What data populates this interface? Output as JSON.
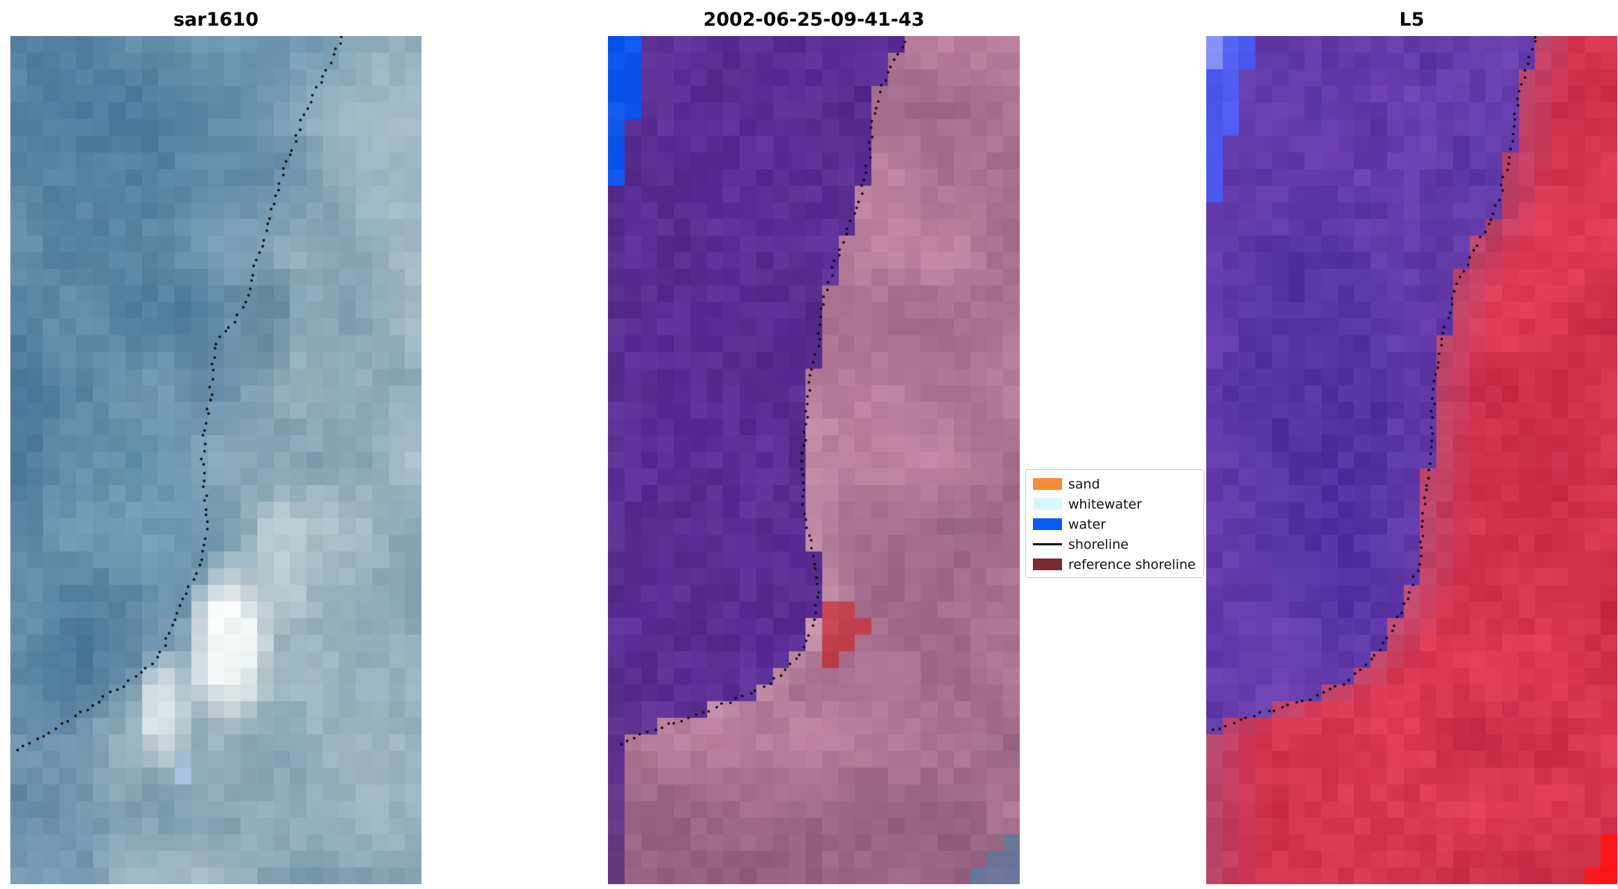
{
  "figure": {
    "background": "#ffffff",
    "panels": [
      {
        "id": "sar1610",
        "title": "sar1610"
      },
      {
        "id": "classified",
        "title": "2002-06-25-09-41-43"
      },
      {
        "id": "L5",
        "title": "L5"
      }
    ]
  },
  "legend": {
    "items": [
      {
        "label": "sand",
        "color": "#f78c34",
        "type": "patch"
      },
      {
        "label": "whitewater",
        "color": "#d6f7fb",
        "type": "patch"
      },
      {
        "label": "water",
        "color": "#0b5cf7",
        "type": "patch"
      },
      {
        "label": "shoreline",
        "color": "#000000",
        "type": "line"
      },
      {
        "label": "reference shoreline",
        "color": "#7c2b30",
        "type": "patch"
      }
    ]
  },
  "chart_data": [
    {
      "type": "heatmap",
      "title": "sar1610",
      "description": "SAR backscatter satellite image, mottled blue-grey pixels with bright white coastal features and a dotted black detected shoreline",
      "grid": [
        25,
        51
      ],
      "boundary": "soft",
      "water": {
        "colors": [
          "#3e6d94",
          "#79a2b8"
        ]
      },
      "land": {
        "colors": [
          "#6f93a6",
          "#b9cad2"
        ]
      },
      "features": [
        {
          "kind": "blob",
          "x": 0.53,
          "y": 0.715,
          "r": 0.115,
          "color": "#f4f7f6",
          "strength": 1
        },
        {
          "kind": "blob",
          "x": 0.37,
          "y": 0.795,
          "r": 0.075,
          "color": "#e6eeef",
          "strength": 0.85
        },
        {
          "kind": "blob",
          "x": 0.66,
          "y": 0.62,
          "r": 0.09,
          "color": "#cfdde3",
          "strength": 0.5
        },
        {
          "kind": "blob",
          "x": 0.88,
          "y": 0.14,
          "r": 0.13,
          "color": "#a9c2cf",
          "strength": 0.45
        },
        {
          "kind": "blob",
          "x": 0.63,
          "y": 0.33,
          "r": 0.09,
          "color": "#577b91",
          "strength": 0.5
        },
        {
          "kind": "blob",
          "x": 0.12,
          "y": 0.08,
          "r": 0.22,
          "color": "#3e6c95",
          "strength": 0.4
        },
        {
          "kind": "blob",
          "x": 0.35,
          "y": 0.55,
          "r": 0.15,
          "color": "#6fa3b8",
          "strength": 0.3
        },
        {
          "kind": "blob",
          "x": 0.41,
          "y": 0.865,
          "r": 0.022,
          "color": "#b9c9ef",
          "strength": 0.95
        },
        {
          "kind": "blob",
          "x": 0.08,
          "y": 0.95,
          "r": 0.2,
          "color": "#45759f",
          "strength": 0.35
        }
      ],
      "shoreline": [
        [
          0.808,
          0.0
        ],
        [
          0.778,
          0.031
        ],
        [
          0.745,
          0.061
        ],
        [
          0.715,
          0.092
        ],
        [
          0.689,
          0.129
        ],
        [
          0.662,
          0.165
        ],
        [
          0.636,
          0.202
        ],
        [
          0.619,
          0.239
        ],
        [
          0.593,
          0.275
        ],
        [
          0.573,
          0.312
        ],
        [
          0.543,
          0.337
        ],
        [
          0.505,
          0.355
        ],
        [
          0.492,
          0.386
        ],
        [
          0.487,
          0.422
        ],
        [
          0.475,
          0.459
        ],
        [
          0.467,
          0.496
        ],
        [
          0.472,
          0.532
        ],
        [
          0.48,
          0.569
        ],
        [
          0.475,
          0.6
        ],
        [
          0.455,
          0.63
        ],
        [
          0.429,
          0.655
        ],
        [
          0.404,
          0.679
        ],
        [
          0.386,
          0.704
        ],
        [
          0.366,
          0.728
        ],
        [
          0.328,
          0.747
        ],
        [
          0.278,
          0.765
        ],
        [
          0.227,
          0.78
        ],
        [
          0.177,
          0.796
        ],
        [
          0.114,
          0.814
        ],
        [
          0.051,
          0.832
        ],
        [
          0.005,
          0.845
        ]
      ]
    },
    {
      "type": "heatmap",
      "title": "2002-06-25-09-41-43",
      "description": "Classified satellite image: purple water class left, mauve-pink land right, blue water patch top-left, brick-red reference patch near shoreline, slate patch bottom-right, dotted detected shoreline",
      "grid": [
        25,
        51
      ],
      "boundary": "hard",
      "water": {
        "colors": [
          "#562b8b",
          "#5f319a"
        ]
      },
      "land": {
        "colors": [
          "#95607f",
          "#c88ca8"
        ]
      },
      "features": [
        {
          "kind": "corner",
          "corner": "top-left",
          "x_extent": 0.1,
          "y_extent": 0.23,
          "color": "#0a58f2"
        },
        {
          "kind": "edge-blend",
          "width": 0.09,
          "color": "#d5a2ba",
          "strength": 0.55,
          "v0": 0.45,
          "v1": 0.8
        },
        {
          "kind": "vshade",
          "v0": 0.78,
          "color": "#7e4d6e",
          "strength": 0.45
        },
        {
          "kind": "blob",
          "x": 0.565,
          "y": 0.695,
          "rx": 0.062,
          "ry": 0.036,
          "color": "#c4424e",
          "hard": true
        },
        {
          "kind": "blob",
          "x": 0.528,
          "y": 0.735,
          "rx": 0.02,
          "ry": 0.012,
          "color": "#c4424e",
          "hard": true
        },
        {
          "kind": "corner",
          "corner": "bottom-right",
          "x_extent": 0.15,
          "y_extent": 0.075,
          "color": "#68789b"
        }
      ],
      "shoreline": [
        [
          0.733,
          0.0
        ],
        [
          0.69,
          0.031
        ],
        [
          0.66,
          0.067
        ],
        [
          0.64,
          0.104
        ],
        [
          0.635,
          0.141
        ],
        [
          0.615,
          0.184
        ],
        [
          0.589,
          0.22
        ],
        [
          0.559,
          0.257
        ],
        [
          0.534,
          0.294
        ],
        [
          0.514,
          0.33
        ],
        [
          0.509,
          0.367
        ],
        [
          0.489,
          0.404
        ],
        [
          0.484,
          0.441
        ],
        [
          0.476,
          0.477
        ],
        [
          0.471,
          0.514
        ],
        [
          0.476,
          0.551
        ],
        [
          0.484,
          0.581
        ],
        [
          0.501,
          0.618
        ],
        [
          0.509,
          0.655
        ],
        [
          0.501,
          0.691
        ],
        [
          0.476,
          0.722
        ],
        [
          0.438,
          0.747
        ],
        [
          0.388,
          0.765
        ],
        [
          0.325,
          0.78
        ],
        [
          0.262,
          0.792
        ],
        [
          0.199,
          0.804
        ],
        [
          0.136,
          0.814
        ],
        [
          0.073,
          0.826
        ],
        [
          0.023,
          0.836
        ]
      ]
    },
    {
      "type": "heatmap",
      "title": "L5",
      "description": "Landsat 5 false-colour image: mottled purple water left, red land right, blue patch top-left, bright red patch bottom-right corner, dotted detected shoreline",
      "grid": [
        25,
        51
      ],
      "boundary": "hard",
      "water": {
        "colors": [
          "#5c36a4",
          "#6e41b2"
        ]
      },
      "land": {
        "colors": [
          "#c62a46",
          "#e8415c"
        ]
      },
      "features": [
        {
          "kind": "corner",
          "corner": "top-left",
          "x_extent": 0.115,
          "y_extent": 0.23,
          "color": "#4d5cf2"
        },
        {
          "kind": "corner",
          "corner": "top-left",
          "x_extent": 0.05,
          "y_extent": 0.055,
          "color": "#8a93f8"
        },
        {
          "kind": "blob",
          "x": 0.28,
          "y": 0.42,
          "r": 0.27,
          "color": "#3f2a96",
          "strength": 0.5,
          "side": "water"
        },
        {
          "kind": "blob",
          "x": 0.34,
          "y": 0.62,
          "r": 0.19,
          "color": "#452da0",
          "strength": 0.45,
          "side": "water"
        },
        {
          "kind": "edge-blend",
          "width": 0.11,
          "color": "#a85585",
          "strength": 0.6
        },
        {
          "kind": "vshade",
          "v0": 0.8,
          "color": "#a21f38",
          "strength": 0.15
        },
        {
          "kind": "corner",
          "corner": "bottom-right",
          "x_extent": 0.08,
          "y_extent": 0.08,
          "color": "#fd1111"
        }
      ],
      "shoreline": [
        [
          0.803,
          0.0
        ],
        [
          0.778,
          0.037
        ],
        [
          0.758,
          0.073
        ],
        [
          0.747,
          0.11
        ],
        [
          0.732,
          0.153
        ],
        [
          0.715,
          0.19
        ],
        [
          0.682,
          0.226
        ],
        [
          0.639,
          0.263
        ],
        [
          0.606,
          0.294
        ],
        [
          0.588,
          0.33
        ],
        [
          0.571,
          0.367
        ],
        [
          0.556,
          0.404
        ],
        [
          0.551,
          0.441
        ],
        [
          0.545,
          0.483
        ],
        [
          0.538,
          0.52
        ],
        [
          0.53,
          0.557
        ],
        [
          0.525,
          0.594
        ],
        [
          0.513,
          0.63
        ],
        [
          0.487,
          0.667
        ],
        [
          0.449,
          0.704
        ],
        [
          0.404,
          0.734
        ],
        [
          0.348,
          0.759
        ],
        [
          0.285,
          0.775
        ],
        [
          0.222,
          0.787
        ],
        [
          0.159,
          0.796
        ],
        [
          0.096,
          0.804
        ],
        [
          0.045,
          0.814
        ],
        [
          0.015,
          0.82
        ]
      ]
    }
  ]
}
